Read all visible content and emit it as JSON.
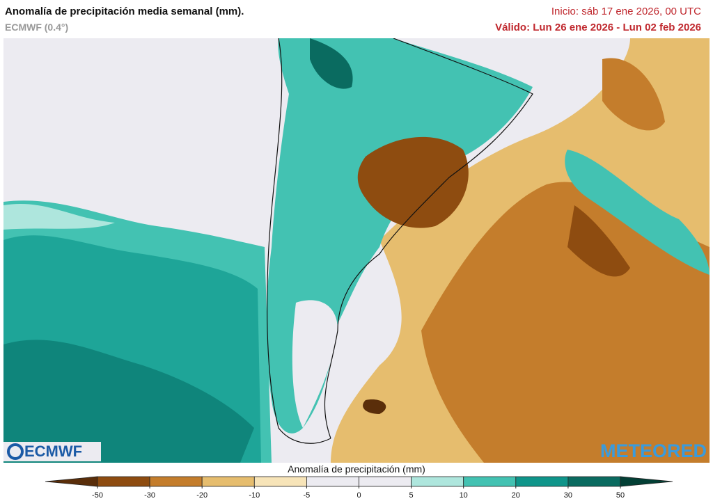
{
  "header": {
    "title": "Anomalía de precipitación media semanal (mm).",
    "model": "ECMWF (0.4°)",
    "init": "Inicio:  sáb 17 ene 2026, 00 UTC",
    "valid": "Válido: Lun 26 ene 2026 - Lun 02 feb 2026"
  },
  "logos": {
    "left": "ECMWF",
    "right": "METEORED"
  },
  "legend": {
    "title": "Anomalía de precipitación (mm)",
    "ticks": [
      -50,
      -30,
      -20,
      -10,
      -5,
      0,
      5,
      10,
      20,
      30,
      50
    ],
    "colors": [
      "#5a2e0a",
      "#8e4c10",
      "#c47d2c",
      "#e6bd6e",
      "#f7e4b8",
      "#ecebf1",
      "#ecebf1",
      "#aee6dd",
      "#43c2b2",
      "#0f958a",
      "#0a6b60",
      "#033f35"
    ]
  }
}
